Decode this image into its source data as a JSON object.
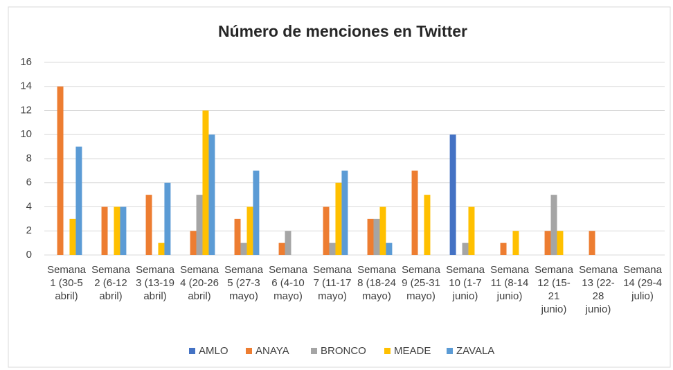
{
  "chart_data": {
    "type": "bar",
    "title": "Número de menciones en Twitter",
    "categories": [
      "Semana 1 (30-5 abril)",
      "Semana 2 (6-12 abril)",
      "Semana 3 (13-19 abril)",
      "Semana 4 (20-26 abril)",
      "Semana 5 (27-3 mayo)",
      "Semana 6 (4-10 mayo)",
      "Semana 7 (11-17 mayo)",
      "Semana 8 (18-24 mayo)",
      "Semana 9 (25-31 mayo)",
      "Semana 10 (1-7 junio)",
      "Semana 11 (8-14 junio)",
      "Semana 12 (15-21 junio)",
      "Semana 13 (22-28 junio)",
      "Semana 14 (29-4 julio)"
    ],
    "series": [
      {
        "name": "AMLO",
        "color": "#4472c4",
        "values": [
          0,
          0,
          0,
          0,
          0,
          0,
          0,
          0,
          0,
          10,
          0,
          0,
          0,
          0
        ]
      },
      {
        "name": "ANAYA",
        "color": "#ed7d31",
        "values": [
          14,
          4,
          5,
          2,
          3,
          1,
          4,
          3,
          7,
          0,
          1,
          2,
          2,
          0
        ]
      },
      {
        "name": "BRONCO",
        "color": "#a5a5a5",
        "values": [
          0,
          0,
          0,
          5,
          1,
          2,
          1,
          3,
          0,
          1,
          0,
          5,
          0,
          0
        ]
      },
      {
        "name": "MEADE",
        "color": "#ffc000",
        "values": [
          3,
          4,
          1,
          12,
          4,
          0,
          6,
          4,
          5,
          4,
          2,
          2,
          0,
          0
        ]
      },
      {
        "name": "ZAVALA",
        "color": "#5b9bd5",
        "values": [
          9,
          4,
          6,
          10,
          7,
          0,
          7,
          1,
          0,
          0,
          0,
          0,
          0,
          0
        ]
      }
    ],
    "ylim": [
      0,
      16
    ],
    "yticks": [
      0,
      2,
      4,
      6,
      8,
      10,
      12,
      14,
      16
    ],
    "grid": true,
    "legend": "bottom"
  }
}
